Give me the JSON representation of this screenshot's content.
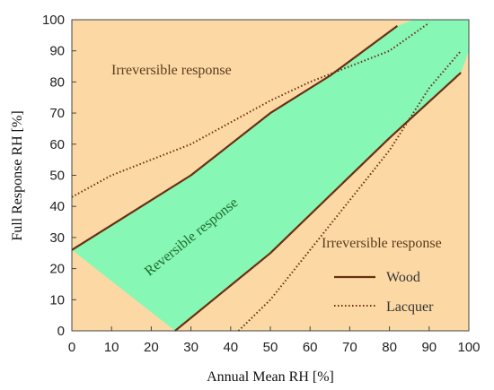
{
  "chart_data": {
    "type": "area",
    "xlabel": "Annual Mean RH [%]",
    "ylabel": "Full Response RH [%]",
    "xlim": [
      0,
      100
    ],
    "ylim": [
      0,
      100
    ],
    "x_ticks": [
      0,
      10,
      20,
      30,
      40,
      50,
      60,
      70,
      80,
      90,
      100
    ],
    "y_ticks": [
      0,
      10,
      20,
      30,
      40,
      50,
      60,
      70,
      80,
      90,
      100
    ],
    "grid": false,
    "colors": {
      "irreversible": "#fcd9a4",
      "reversible": "#87f7b5",
      "wood_line": "#6b2e12",
      "lacquer_line": "#6b2e12"
    },
    "regions": [
      {
        "label": "Irreversible response",
        "position": "upper-left"
      },
      {
        "label": "Reversible response",
        "position": "center"
      },
      {
        "label": "Irreversible response",
        "position": "lower-right"
      }
    ],
    "reversible_band": {
      "upper_boundary": [
        {
          "x": 0,
          "y": 26
        },
        {
          "x": 30,
          "y": 50
        },
        {
          "x": 50,
          "y": 70
        },
        {
          "x": 65,
          "y": 82
        },
        {
          "x": 82,
          "y": 98
        },
        {
          "x": 86,
          "y": 100
        }
      ],
      "lower_boundary": [
        {
          "x": 100,
          "y": 90
        },
        {
          "x": 98,
          "y": 83
        },
        {
          "x": 80,
          "y": 62
        },
        {
          "x": 50,
          "y": 25
        },
        {
          "x": 26,
          "y": 0
        }
      ]
    },
    "series": [
      {
        "name": "Wood",
        "style": "solid",
        "segments": [
          [
            {
              "x": 0,
              "y": 26
            },
            {
              "x": 30,
              "y": 50
            },
            {
              "x": 50,
              "y": 70
            },
            {
              "x": 65,
              "y": 82
            },
            {
              "x": 82,
              "y": 98
            }
          ],
          [
            {
              "x": 26,
              "y": 0
            },
            {
              "x": 50,
              "y": 25
            },
            {
              "x": 80,
              "y": 62
            },
            {
              "x": 98,
              "y": 83
            }
          ]
        ]
      },
      {
        "name": "Lacquer",
        "style": "dotted",
        "segments": [
          [
            {
              "x": 0,
              "y": 43
            },
            {
              "x": 10,
              "y": 50
            },
            {
              "x": 30,
              "y": 60
            },
            {
              "x": 50,
              "y": 74
            },
            {
              "x": 60,
              "y": 80
            },
            {
              "x": 80,
              "y": 90
            },
            {
              "x": 90,
              "y": 99
            }
          ],
          [
            {
              "x": 42,
              "y": 0
            },
            {
              "x": 50,
              "y": 10
            },
            {
              "x": 70,
              "y": 42
            },
            {
              "x": 80,
              "y": 58
            },
            {
              "x": 90,
              "y": 78
            },
            {
              "x": 98,
              "y": 90
            }
          ]
        ]
      }
    ],
    "legend": {
      "position": "lower-right",
      "entries": [
        {
          "label": "Wood",
          "style": "solid"
        },
        {
          "label": "Lacquer",
          "style": "dotted"
        }
      ]
    }
  }
}
